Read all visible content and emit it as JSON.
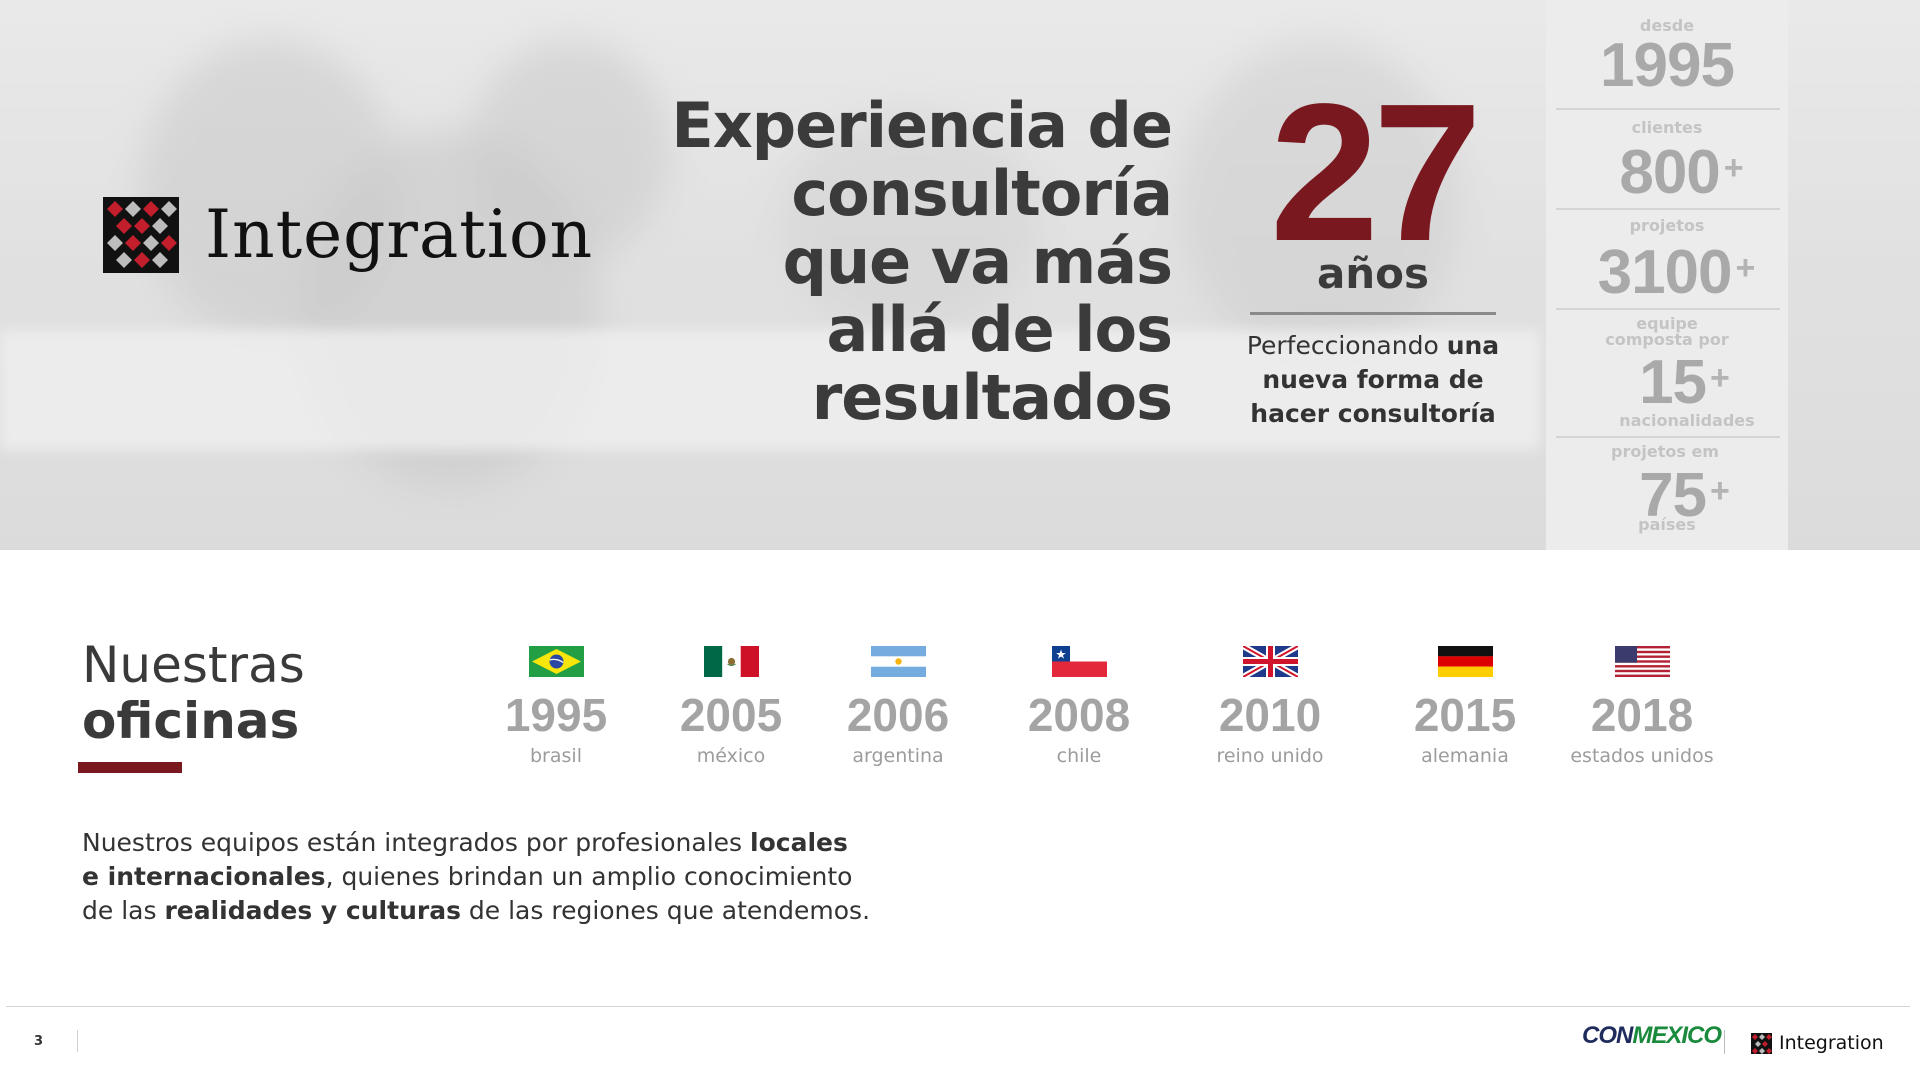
{
  "brand": {
    "name": "Integration"
  },
  "hero": {
    "headline": [
      "Experiencia de",
      "consultoría",
      "que va más",
      "allá de los",
      "resultados"
    ],
    "years": {
      "number": "27",
      "unit": "años",
      "subtitle_plain": "Perfeccionando ",
      "subtitle_bold_1": "una",
      "subtitle_bold_2": "nueva forma de",
      "subtitle_bold_3": "hacer consultoría"
    },
    "stats": [
      {
        "top": "desde",
        "value": "1995",
        "plus": "",
        "bottom": ""
      },
      {
        "top": "clientes",
        "value": "800",
        "plus": "+",
        "bottom": ""
      },
      {
        "top": "projetos",
        "value": "3100",
        "plus": "+",
        "bottom": ""
      },
      {
        "top": "equipe composta por",
        "value": "15",
        "plus": "+",
        "bottom": "nacionalidades"
      },
      {
        "top": "projetos em",
        "value": "75",
        "plus": "+",
        "bottom": "países"
      }
    ]
  },
  "offices": {
    "title_light": "Nuestras",
    "title_bold": "oficinas",
    "items": [
      {
        "year": "1995",
        "country": "brasil",
        "flag": "brazil-flag-icon"
      },
      {
        "year": "2005",
        "country": "méxico",
        "flag": "mexico-flag-icon"
      },
      {
        "year": "2006",
        "country": "argentina",
        "flag": "argentina-flag-icon"
      },
      {
        "year": "2008",
        "country": "chile",
        "flag": "chile-flag-icon"
      },
      {
        "year": "2010",
        "country": "reino unido",
        "flag": "uk-flag-icon"
      },
      {
        "year": "2015",
        "country": "alemania",
        "flag": "germany-flag-icon"
      },
      {
        "year": "2018",
        "country": "estados unidos",
        "flag": "usa-flag-icon"
      }
    ],
    "paragraph": {
      "p1": "Nuestros equipos están integrados por profesionales ",
      "b1": "locales",
      "b2": "e internacionales",
      "p2": ", quienes brindan un amplio conocimiento",
      "p3": "de las ",
      "b3": "realidades y culturas",
      "p4": " de las regiones que atendemos."
    }
  },
  "footer": {
    "page_number": "3",
    "partner_part1": "CON",
    "partner_part2": "MEXICO",
    "brand": "Integration"
  },
  "colors": {
    "accent": "#7a1820",
    "text": "#3a3a3a",
    "muted": "#a4a4a4"
  }
}
